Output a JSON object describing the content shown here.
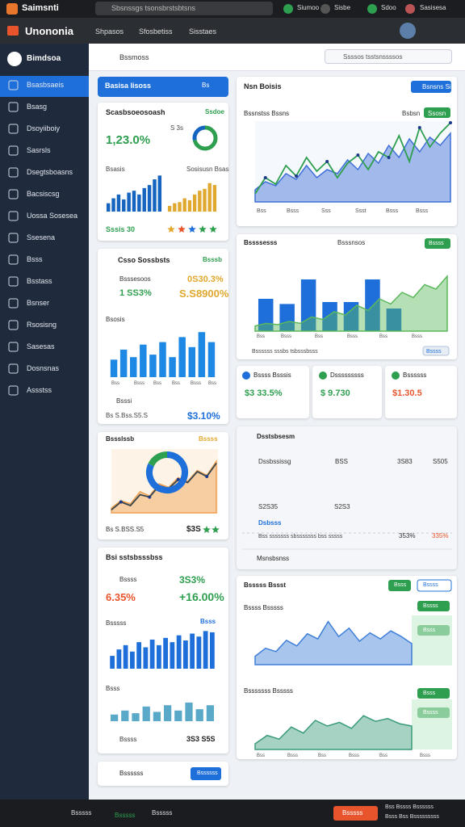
{
  "browser": {
    "brand": "Saimsnti",
    "search": "Sbsnssgs tsonsbrstsbtsns",
    "actions": [
      "Siumoo",
      "Sisbe",
      "Sdoo",
      "Sasisesa"
    ]
  },
  "app": {
    "title": "Unononia",
    "nav": [
      "Shpasos",
      "Sfosbetiss",
      "Sisstaes"
    ]
  },
  "sidebar": {
    "title": "Bimdsoa",
    "items": [
      "Bsasbsaeis",
      "Bsasg",
      "Dsoyiiboiy",
      "Sasrsls",
      "Dsegtsboasns",
      "Bacsiscsg",
      "Uossa Sosesea",
      "Ssesena",
      "Bsss",
      "Bsstass",
      "Bsnser",
      "Rsosisng",
      "Sasesas",
      "Dosnsnas",
      "Assstss"
    ]
  },
  "toolbar": {
    "title": "Bssmoss",
    "search": "Ssssos tsstsnssssos"
  },
  "panels": {
    "banner": {
      "title": "Basisa Iisoss",
      "action": "Bs"
    },
    "summary": {
      "title": "Scasbsoeosoash",
      "badge": "Ssdoe",
      "value": "1,23.0%",
      "mini": "S 3s",
      "label_a": "Bsasis",
      "label_b": "Sosisusn Bsas",
      "footer": "Sssis 30"
    },
    "trend": {
      "title": "Nsn Boisis",
      "button": "Bsnsns Si",
      "sub": "Bssnstss Bssns",
      "tag_a": "Bsbsn",
      "tag_b": "Ssosn",
      "x_labels": [
        "Bss",
        "Bsss",
        "Sss",
        "Ssst",
        "Bsss",
        "Bsss"
      ]
    },
    "core": {
      "title": "Csso Sossbsts",
      "badge": "Bsssb",
      "row_a": "Bsssesoos",
      "value_a": "0S30.3%",
      "row_b": "1 SS3%",
      "value_b": "S.S8900%",
      "sub": "Bsosis",
      "x_labels": [
        "Bss",
        "Bsss",
        "Bss",
        "Bss",
        "Bsss",
        "Bss"
      ],
      "foot_label": "Bsssi",
      "foot_text": "Bs S.Bss.S5.S",
      "foot_value": "$3.10%"
    },
    "mixed": {
      "title": "Bssssesss",
      "tag": "Bsssnsos",
      "button": "Bssss",
      "x_labels": [
        "Bss",
        "Bsss",
        "Bss",
        "Bsss",
        "Bss",
        "Bsss"
      ],
      "footer": "Bssssss sssbs tsbsssbsss",
      "button_b": "Bssss"
    },
    "stats": [
      {
        "title": "Bssss Bsssis",
        "value": "$3 33.5%"
      },
      {
        "title": "Dsssssssss",
        "value": "$ 9.730"
      },
      {
        "title": "Bssssss",
        "value": "$1.30.5"
      }
    ],
    "detail": {
      "title": "Dsstsbsesm",
      "row": "Dssbssissg",
      "col_a": "BSS",
      "col_b": "3S83",
      "col_c": "S505",
      "point_a": "S2S35",
      "point_b": "S2S3",
      "link": "Dsbsss",
      "footer": "Bss sssssss sbsssssss bss sssss",
      "foot_a": "353%",
      "foot_b": "335%",
      "section": "Msnsbsnss"
    },
    "ratio": {
      "title": "Bssslssb",
      "badge": "Bssss",
      "foot_text": "Bs S.BSS.S5",
      "foot_value": "$3S"
    },
    "growth": {
      "title": "Bsi sstsbsssbss",
      "row": "Bssss",
      "row_value": "3S3%",
      "value_a": "6.35%",
      "value_b": "+16.00%",
      "sub": "Bsssss",
      "badge": "Bsss",
      "sub_b": "Bsss",
      "foot": "Bssss",
      "foot_value": "3S3 S5S"
    },
    "market": {
      "title": "Bsssss Bssst",
      "button_a": "Bsss",
      "button_b": "Bssss",
      "sub_a": "Bssss Bsssss",
      "sub_b": "Bsssssss Bsssss",
      "tags": [
        "Bssss",
        "Bsss",
        "Bsss",
        "Bssss"
      ],
      "x_labels": [
        "Bss",
        "Bsss",
        "Bss",
        "Bsss",
        "Bss",
        "Bsss"
      ]
    },
    "footer_card": {
      "title": "Bssssss",
      "button": "Bssssss"
    }
  },
  "charts": [
    {
      "type": "bar",
      "ylim": [
        0,
        100
      ],
      "series": [
        {
          "type": "bar",
          "color": "#1565c0",
          "values": [
            22,
            35,
            45,
            32,
            50,
            55,
            45,
            62,
            70,
            85,
            95
          ]
        }
      ]
    },
    {
      "type": "bar",
      "ylim": [
        0,
        100
      ],
      "series": [
        {
          "type": "bar",
          "color": "#e0a82e",
          "values": [
            15,
            22,
            25,
            35,
            30,
            45,
            55,
            60,
            75,
            70
          ]
        }
      ]
    },
    {
      "type": "line",
      "ylim": [
        0,
        100
      ],
      "series": [
        {
          "type": "area",
          "color": "#3f6fd8",
          "values": [
            15,
            25,
            20,
            35,
            28,
            45,
            30,
            40,
            35,
            52,
            40,
            60,
            48,
            70,
            55,
            78,
            62,
            80,
            70,
            85
          ]
        },
        {
          "type": "line",
          "color": "#2e9e4f",
          "values": [
            10,
            30,
            22,
            45,
            32,
            55,
            38,
            50,
            30,
            48,
            58,
            40,
            62,
            55,
            82,
            50,
            92,
            68,
            85,
            98
          ]
        }
      ]
    },
    {
      "type": "mixed",
      "ylim": [
        0,
        100
      ],
      "series": [
        {
          "type": "bar",
          "color": "#1e6fd9",
          "values": [
            50,
            42,
            80,
            45,
            45,
            80,
            35,
            0,
            0
          ]
        },
        {
          "type": "area",
          "color": "#5cb85c",
          "values": [
            8,
            12,
            10,
            15,
            12,
            22,
            18,
            30,
            25,
            40,
            32,
            50,
            42,
            60,
            52,
            72,
            65,
            85
          ]
        }
      ]
    },
    {
      "type": "bar",
      "ylim": [
        0,
        100
      ],
      "series": [
        {
          "type": "bar",
          "color": "#1e88e5",
          "values": [
            35,
            55,
            40,
            65,
            45,
            70,
            40,
            80,
            60,
            90,
            70
          ]
        }
      ]
    },
    {
      "type": "line",
      "ylim": [
        0,
        100
      ],
      "series": [
        {
          "type": "area",
          "color": "#f0a050",
          "values": [
            8,
            20,
            15,
            35,
            28,
            48,
            42,
            58,
            52,
            70,
            62,
            85
          ]
        },
        {
          "type": "line",
          "color": "#37474f",
          "values": [
            5,
            18,
            12,
            30,
            26,
            45,
            40,
            55,
            50,
            68,
            60,
            82
          ]
        }
      ]
    },
    {
      "type": "bar",
      "ylim": [
        0,
        100
      ],
      "series": [
        {
          "type": "bar",
          "color": "#1e6fd9",
          "values": [
            30,
            45,
            55,
            40,
            62,
            50,
            68,
            55,
            72,
            62,
            78,
            66,
            82,
            75,
            88,
            85
          ]
        }
      ]
    },
    {
      "type": "bar",
      "ylim": [
        0,
        100
      ],
      "series": [
        {
          "type": "bar",
          "color": "#5aa9c9",
          "values": [
            25,
            40,
            30,
            55,
            35,
            60,
            40,
            70,
            45,
            60
          ]
        }
      ]
    },
    {
      "type": "line",
      "ylim": [
        0,
        100
      ],
      "series": [
        {
          "type": "area",
          "color": "#3f7fd8",
          "values": [
            18,
            35,
            28,
            52,
            40,
            66,
            55,
            92,
            60,
            78,
            50,
            68,
            55,
            72,
            60,
            45
          ]
        }
      ]
    },
    {
      "type": "line",
      "ylim": [
        0,
        100
      ],
      "series": [
        {
          "type": "area",
          "color": "#3a9b7a",
          "values": [
            12,
            30,
            22,
            48,
            35,
            62,
            50,
            58,
            45,
            72,
            60,
            66,
            55,
            50
          ]
        }
      ]
    }
  ],
  "donuts": [
    {
      "values": [
        72,
        28
      ],
      "colors": [
        "#2e9e4f",
        "#1565c0"
      ]
    },
    {
      "values": [
        82,
        18
      ],
      "colors": [
        "#1e6fd9",
        "#2e9e4f"
      ]
    }
  ],
  "taskbar": {
    "items": [
      "Bsssss",
      "Bsssss",
      "Bsssss"
    ],
    "button": "Bsssss",
    "status_a": "Bss Bssss Bssssss",
    "status_b": "Bsss Bss Bsssssssss"
  }
}
